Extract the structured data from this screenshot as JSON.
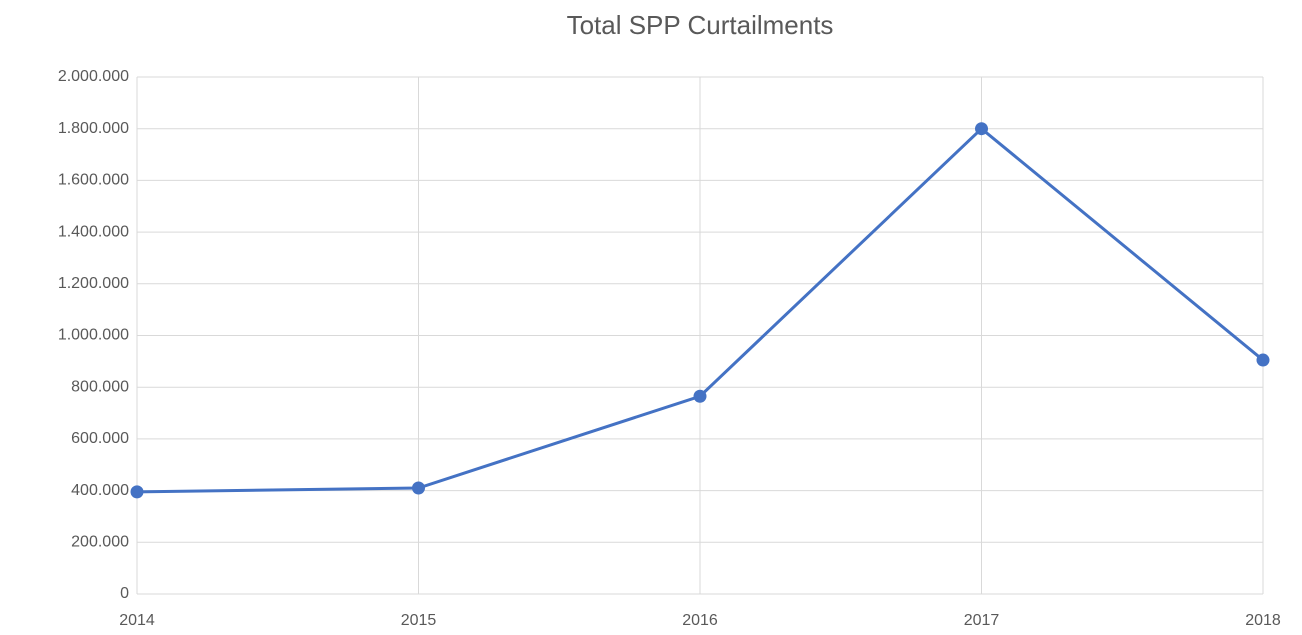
{
  "chart_data": {
    "type": "line",
    "title": "Total SPP Curtailments",
    "categories": [
      "2014",
      "2015",
      "2016",
      "2017",
      "2018"
    ],
    "series": [
      {
        "name": "Total SPP Curtailments",
        "color": "#4472c4",
        "values": [
          395000,
          410000,
          765000,
          1800000,
          905000
        ]
      }
    ],
    "ylim": [
      0,
      2000000
    ],
    "yticks": [
      0,
      {
        "value": 200000,
        "label": "200.000"
      },
      {
        "value": 400000,
        "label": "400.000"
      },
      {
        "value": 600000,
        "label": "600.000"
      },
      {
        "value": 800000,
        "label": "800.000"
      },
      {
        "value": 1000000,
        "label": "1.000.000"
      },
      {
        "value": 1200000,
        "label": "1.200.000"
      },
      {
        "value": 1400000,
        "label": "1.400.000"
      },
      {
        "value": 1600000,
        "label": "1.600.000"
      },
      {
        "value": 1800000,
        "label": "1.800.000"
      },
      {
        "value": 2000000,
        "label": "2.000.000"
      }
    ],
    "grid": true
  }
}
